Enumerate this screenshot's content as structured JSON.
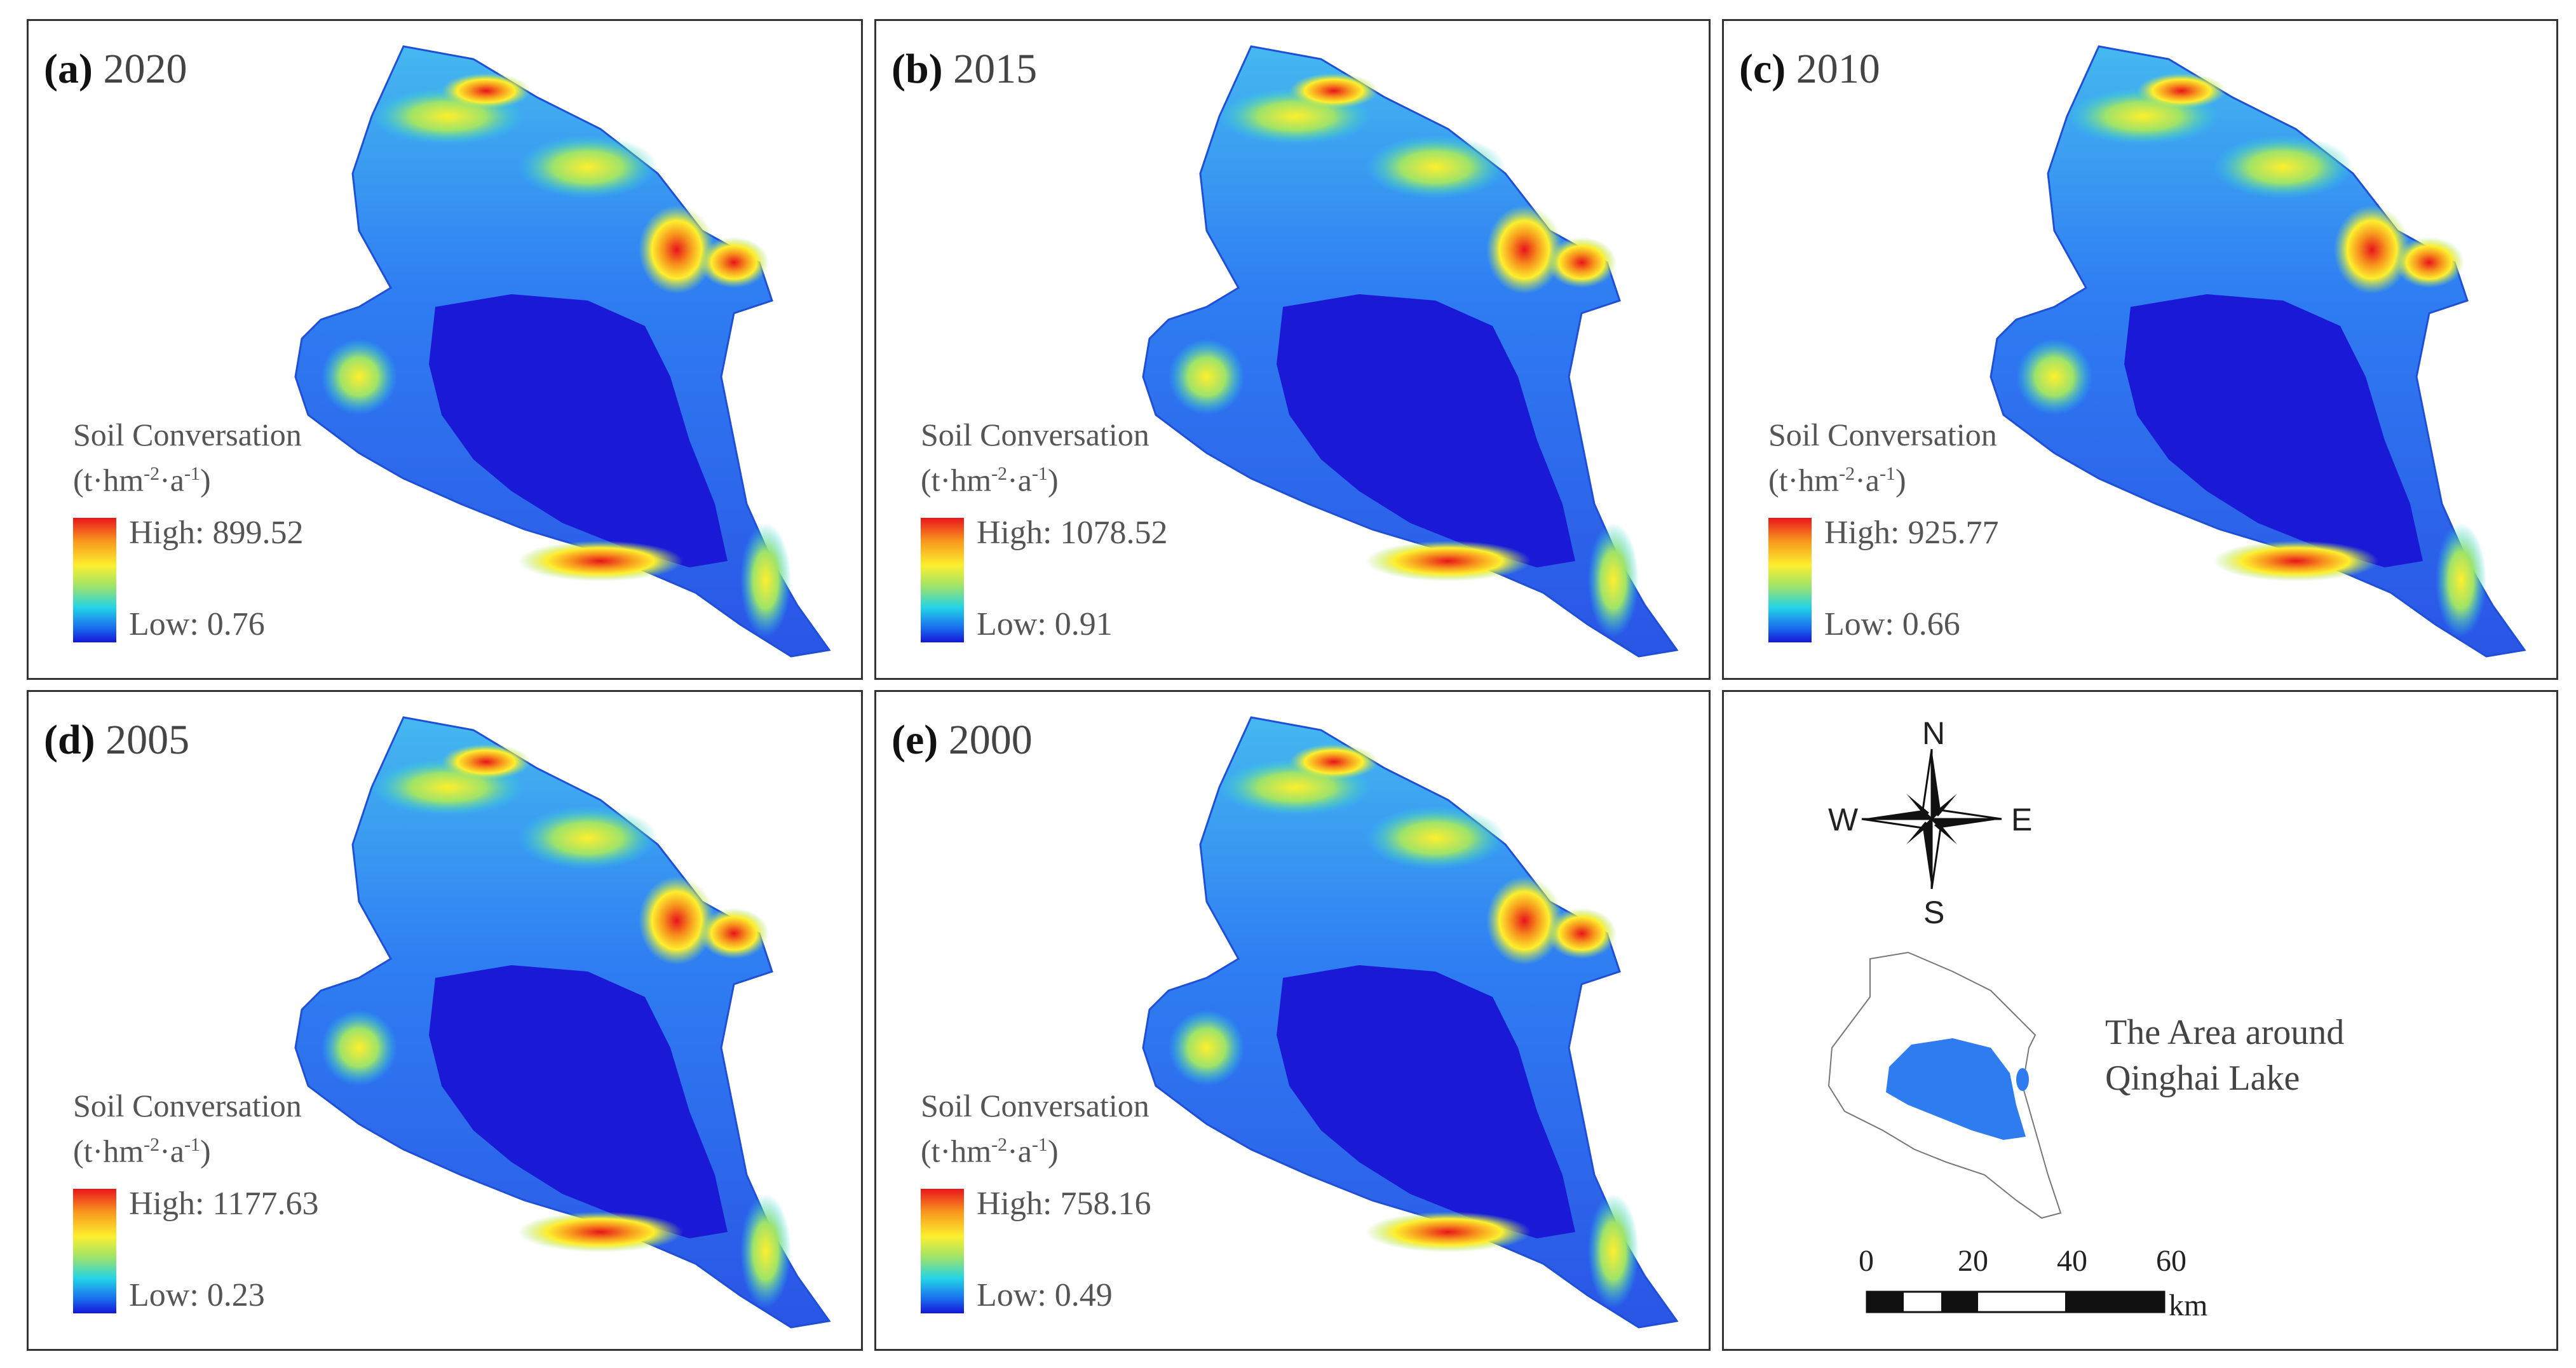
{
  "legend_title": "Soil Conversation",
  "legend_unit": {
    "prefix": "(t·hm",
    "exp1": "-2",
    "mid": "·a",
    "exp2": "-1",
    "suffix": ")"
  },
  "colors": {
    "high": "#e8141b",
    "mid": "#fdef2e",
    "low": "#1515d6",
    "lake": "#1a1ad6",
    "mini_lake": "#2e7cf0"
  },
  "panels": [
    {
      "letter": "(a)",
      "year": "2020",
      "high": "High: 899.52",
      "low": "Low: 0.76"
    },
    {
      "letter": "(b)",
      "year": "2015",
      "high": "High: 1078.52",
      "low": "Low: 0.91"
    },
    {
      "letter": "(c)",
      "year": "2010",
      "high": "High: 925.77",
      "low": "Low: 0.66"
    },
    {
      "letter": "(d)",
      "year": "2005",
      "high": "High: 1177.63",
      "low": "Low: 0.23"
    },
    {
      "letter": "(e)",
      "year": "2000",
      "high": "High: 758.16",
      "low": "Low: 0.49"
    }
  ],
  "compass": {
    "n": "N",
    "s": "S",
    "e": "E",
    "w": "W"
  },
  "area_label": {
    "line1": "The Area around",
    "line2": "Qinghai Lake"
  },
  "scalebar": {
    "ticks": [
      "0",
      "20",
      "40",
      "60"
    ],
    "unit": "km"
  }
}
